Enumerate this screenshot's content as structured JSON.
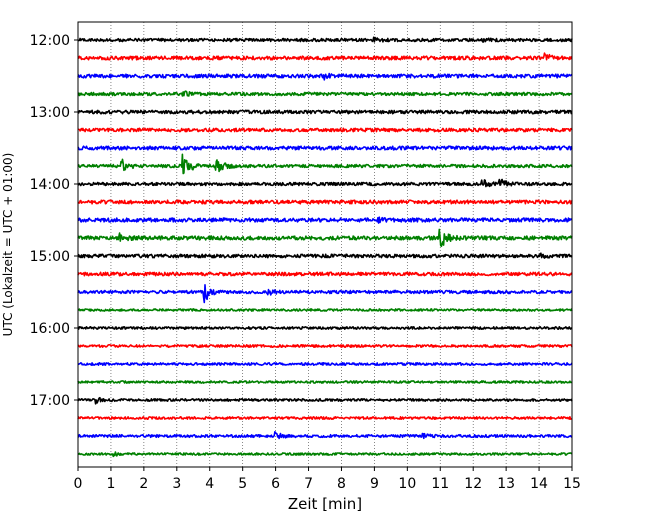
{
  "chart_data": {
    "type": "line",
    "title": "",
    "xlabel": "Zeit  [min]",
    "ylabel": "UTC (Lokalzeit = UTC + 01:00)",
    "xlim": [
      0,
      15
    ],
    "x_ticks": [
      0,
      1,
      2,
      3,
      4,
      5,
      6,
      7,
      8,
      9,
      10,
      11,
      12,
      13,
      14,
      15
    ],
    "x_grid": "dotted",
    "y_ticks": [
      {
        "label": "12:00",
        "trace_index": 0
      },
      {
        "label": "13:00",
        "trace_index": 4
      },
      {
        "label": "14:00",
        "trace_index": 8
      },
      {
        "label": "15:00",
        "trace_index": 12
      },
      {
        "label": "16:00",
        "trace_index": 16
      },
      {
        "label": "17:00",
        "trace_index": 20
      }
    ],
    "trace_interval_min": 15,
    "trace_colors": [
      "#000000",
      "#ff0000",
      "#0000ff",
      "#008000"
    ],
    "traces": [
      {
        "start": "12:00",
        "color": "#000000",
        "noise": 0.25,
        "events": [
          {
            "t": 9.0,
            "amp": 0.35
          },
          {
            "t": 12.2,
            "amp": 0.3
          }
        ]
      },
      {
        "start": "12:15",
        "color": "#ff0000",
        "noise": 0.3,
        "events": [
          {
            "t": 14.2,
            "amp": 0.5
          }
        ]
      },
      {
        "start": "12:30",
        "color": "#0000ff",
        "noise": 0.3,
        "events": [
          {
            "t": 7.5,
            "amp": 0.4
          }
        ]
      },
      {
        "start": "12:45",
        "color": "#008000",
        "noise": 0.25,
        "events": [
          {
            "t": 3.2,
            "amp": 0.35
          }
        ]
      },
      {
        "start": "13:00",
        "color": "#000000",
        "noise": 0.28,
        "events": []
      },
      {
        "start": "13:15",
        "color": "#ff0000",
        "noise": 0.28,
        "events": []
      },
      {
        "start": "13:30",
        "color": "#0000ff",
        "noise": 0.3,
        "events": []
      },
      {
        "start": "13:45",
        "color": "#008000",
        "noise": 0.25,
        "events": [
          {
            "t": 1.35,
            "amp": 0.9
          },
          {
            "t": 3.2,
            "amp": 2.2
          },
          {
            "t": 4.2,
            "amp": 1.8
          }
        ]
      },
      {
        "start": "14:00",
        "color": "#000000",
        "noise": 0.25,
        "events": [
          {
            "t": 12.3,
            "amp": 0.6
          },
          {
            "t": 12.8,
            "amp": 0.9
          }
        ]
      },
      {
        "start": "14:15",
        "color": "#ff0000",
        "noise": 0.3,
        "events": []
      },
      {
        "start": "14:30",
        "color": "#0000ff",
        "noise": 0.32,
        "events": [
          {
            "t": 9.0,
            "amp": 0.4
          }
        ]
      },
      {
        "start": "14:45",
        "color": "#008000",
        "noise": 0.32,
        "events": [
          {
            "t": 1.3,
            "amp": 0.5
          },
          {
            "t": 11.0,
            "amp": 1.6
          }
        ]
      },
      {
        "start": "15:00",
        "color": "#000000",
        "noise": 0.28,
        "events": [
          {
            "t": 14.0,
            "amp": 0.3
          }
        ]
      },
      {
        "start": "15:15",
        "color": "#ff0000",
        "noise": 0.28,
        "events": []
      },
      {
        "start": "15:30",
        "color": "#0000ff",
        "noise": 0.25,
        "events": [
          {
            "t": 3.85,
            "amp": 1.5
          },
          {
            "t": 5.8,
            "amp": 0.4
          }
        ]
      },
      {
        "start": "15:45",
        "color": "#008000",
        "noise": 0.18,
        "events": []
      },
      {
        "start": "16:00",
        "color": "#000000",
        "noise": 0.2,
        "events": []
      },
      {
        "start": "16:15",
        "color": "#ff0000",
        "noise": 0.2,
        "events": []
      },
      {
        "start": "16:30",
        "color": "#0000ff",
        "noise": 0.2,
        "events": []
      },
      {
        "start": "16:45",
        "color": "#008000",
        "noise": 0.18,
        "events": []
      },
      {
        "start": "17:00",
        "color": "#000000",
        "noise": 0.2,
        "events": [
          {
            "t": 0.55,
            "amp": 0.6
          }
        ]
      },
      {
        "start": "17:15",
        "color": "#ff0000",
        "noise": 0.2,
        "events": []
      },
      {
        "start": "17:30",
        "color": "#0000ff",
        "noise": 0.22,
        "events": [
          {
            "t": 6.0,
            "amp": 0.5
          },
          {
            "t": 10.5,
            "amp": 0.3
          }
        ]
      },
      {
        "start": "17:45",
        "color": "#008000",
        "noise": 0.18,
        "events": [
          {
            "t": 1.1,
            "amp": 0.3
          }
        ]
      }
    ]
  }
}
